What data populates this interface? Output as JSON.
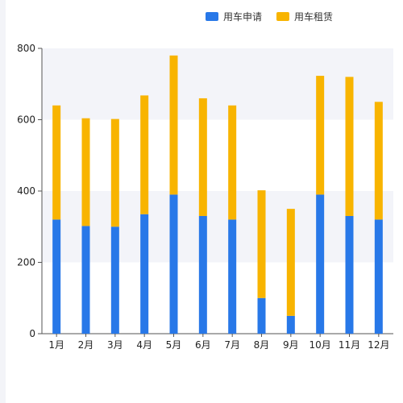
{
  "chart_data": {
    "type": "bar",
    "stacked": true,
    "categories": [
      "1月",
      "2月",
      "3月",
      "4月",
      "5月",
      "6月",
      "7月",
      "8月",
      "9月",
      "10月",
      "11月",
      "12月"
    ],
    "series": [
      {
        "name": "用车申请",
        "color": "#2878e8",
        "values": [
          320,
          302,
          300,
          335,
          390,
          330,
          320,
          100,
          50,
          390,
          330,
          320
        ]
      },
      {
        "name": "用车租赁",
        "color": "#f8b400",
        "values": [
          320,
          302,
          302,
          333,
          390,
          330,
          320,
          302,
          300,
          333,
          390,
          330
        ]
      }
    ],
    "title": "",
    "xlabel": "",
    "ylabel": "",
    "ylim": [
      0,
      800
    ],
    "yticks": [
      0,
      200,
      400,
      600,
      800
    ],
    "grid": "alternating bands",
    "legend_position": "top-right"
  }
}
